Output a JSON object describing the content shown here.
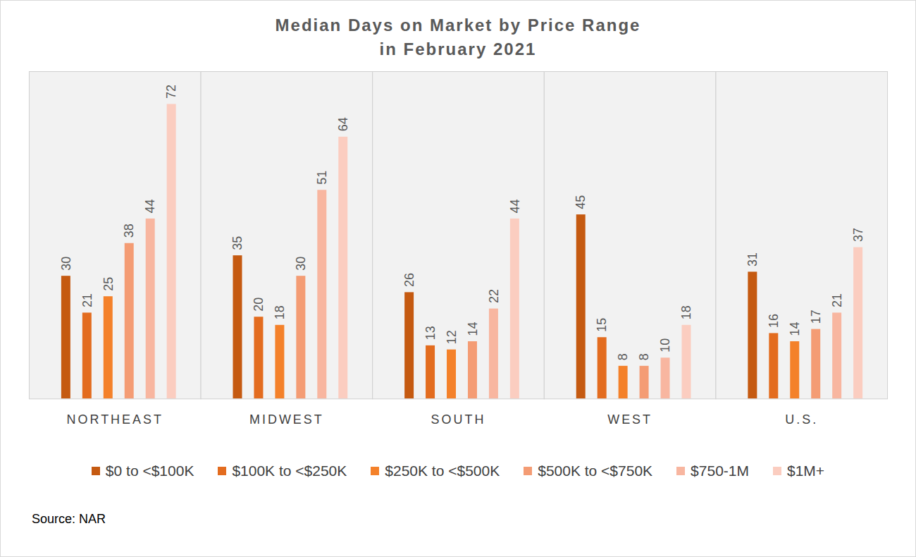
{
  "chart_data": {
    "type": "bar",
    "title": "Median Days on Market by Price Range",
    "subtitle": "in February 2021",
    "caption": "Source: NAR",
    "categories": [
      "NORTHEAST",
      "MIDWEST",
      "SOUTH",
      "WEST",
      "U.S."
    ],
    "series": [
      {
        "name": "$0 to <$100K",
        "color": "#C55A11",
        "values": [
          30,
          35,
          26,
          45,
          31
        ]
      },
      {
        "name": "$100K to <$250K",
        "color": "#E36C1F",
        "values": [
          21,
          20,
          13,
          15,
          16
        ]
      },
      {
        "name": "$250K to <$500K",
        "color": "#F4812A",
        "values": [
          25,
          18,
          12,
          8,
          14
        ]
      },
      {
        "name": "$500K to <$750K",
        "color": "#F49C74",
        "values": [
          38,
          30,
          14,
          8,
          17
        ]
      },
      {
        "name": "$750-1M",
        "color": "#F8B6A0",
        "values": [
          44,
          51,
          22,
          10,
          21
        ]
      },
      {
        "name": "$1M+",
        "color": "#FBCDC0",
        "values": [
          72,
          64,
          44,
          18,
          37
        ]
      }
    ],
    "ylim": [
      0,
      80
    ],
    "grid": false,
    "legend": "bottom",
    "data_labels": true,
    "tick_labels": "x"
  }
}
